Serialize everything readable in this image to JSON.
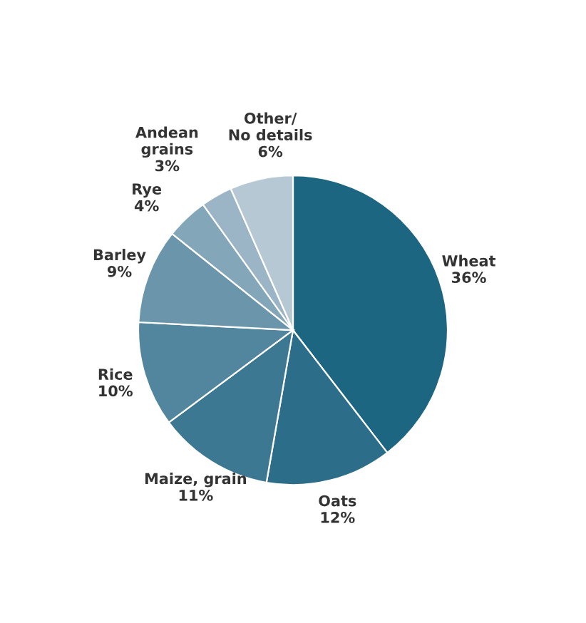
{
  "chart_data": {
    "type": "pie",
    "categories": [
      "Wheat",
      "Oats",
      "Maize, grain",
      "Rice",
      "Barley",
      "Rye",
      "Andean\ngrains",
      "Other/\nNo details"
    ],
    "values": [
      36,
      12,
      11,
      10,
      9,
      4,
      3,
      6
    ],
    "value_labels": [
      "36%",
      "12%",
      "11%",
      "10%",
      "9%",
      "4%",
      "3%",
      "6%"
    ],
    "colors": [
      "#1d6682",
      "#2c6e8a",
      "#3d7892",
      "#52869f",
      "#6a95ab",
      "#84a6b9",
      "#9bb5c6",
      "#b7c8d5"
    ]
  }
}
